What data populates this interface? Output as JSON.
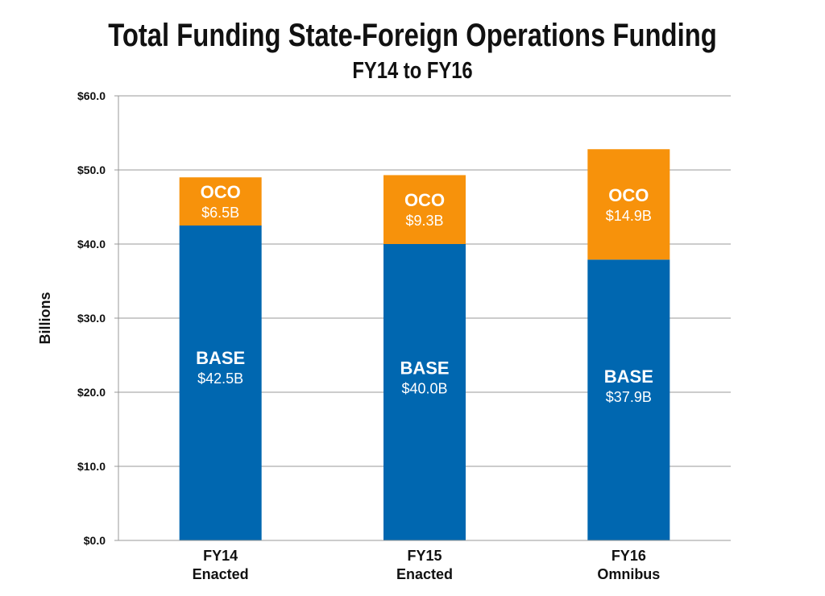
{
  "chart_data": {
    "type": "bar",
    "stacked": true,
    "title": "Total Funding State-Foreign Operations Funding",
    "subtitle": "FY14 to FY16",
    "xlabel": "",
    "ylabel": "Billions",
    "ylim": [
      0,
      60
    ],
    "yticks": [
      0,
      10,
      20,
      30,
      40,
      50,
      60
    ],
    "ytick_labels": [
      "$0.0",
      "$10.0",
      "$20.0",
      "$30.0",
      "$40.0",
      "$50.0",
      "$60.0"
    ],
    "grid": true,
    "categories": [
      {
        "line1": "FY14",
        "line2": "Enacted"
      },
      {
        "line1": "FY15",
        "line2": "Enacted"
      },
      {
        "line1": "FY16",
        "line2": "Omnibus"
      }
    ],
    "series": [
      {
        "name": "BASE",
        "color": "#0067B0",
        "values": [
          42.5,
          40.0,
          37.9
        ],
        "labels": [
          "$42.5B",
          "$40.0B",
          "$37.9B"
        ]
      },
      {
        "name": "OCO",
        "color": "#F7920B",
        "values": [
          6.5,
          9.3,
          14.9
        ],
        "labels": [
          "$6.5B",
          "$9.3B",
          "$14.9B"
        ]
      }
    ]
  }
}
